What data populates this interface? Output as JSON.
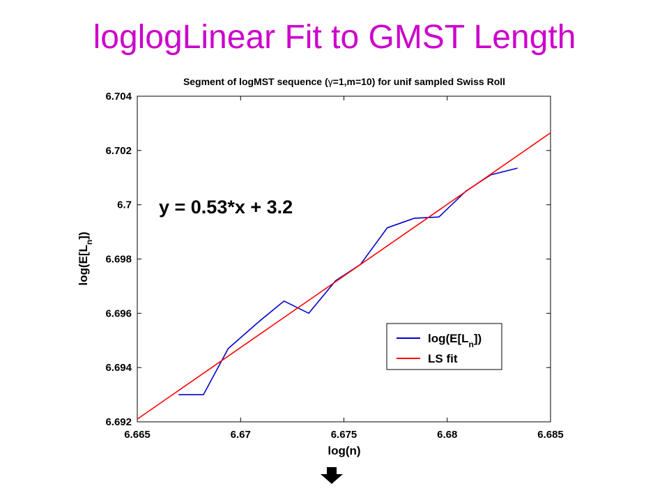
{
  "slide": {
    "title": "loglogLinear Fit to GMST Length"
  },
  "chart_data": {
    "type": "line",
    "title_parts": [
      "Segment of logMST sequence (",
      "γ",
      "=1,m=10) for unif sampled Swiss Roll"
    ],
    "xlabel": "log(n)",
    "ylabel_parts": [
      "log(E[L",
      "n",
      "])"
    ],
    "xlim": [
      6.665,
      6.685
    ],
    "ylim": [
      6.692,
      6.704
    ],
    "x_ticks": [
      6.665,
      6.67,
      6.675,
      6.68,
      6.685
    ],
    "x_tick_labels": [
      "6.665",
      "6.67",
      "6.675",
      "6.68",
      "6.685"
    ],
    "y_ticks": [
      6.692,
      6.694,
      6.696,
      6.698,
      6.7,
      6.702,
      6.704
    ],
    "y_tick_labels": [
      "6.692",
      "6.694",
      "6.696",
      "6.698",
      "6.7",
      "6.702",
      "6.704"
    ],
    "grid": false,
    "legend_position": "bottom-right",
    "annotation": "y = 0.53*x + 3.2",
    "series": [
      {
        "name_parts": [
          "log(E[L",
          "n",
          "])"
        ],
        "color": "#0000cc",
        "x": [
          6.667,
          6.6682,
          6.6694,
          6.6709,
          6.6721,
          6.6733,
          6.6746,
          6.6758,
          6.6771,
          6.6784,
          6.6796,
          6.6809,
          6.6821,
          6.6834
        ],
        "y": [
          6.693,
          6.693,
          6.6947,
          6.6957,
          6.69645,
          6.696,
          6.6972,
          6.6978,
          6.69915,
          6.6995,
          6.69955,
          6.7005,
          6.7011,
          6.70135
        ]
      },
      {
        "name": "LS fit",
        "color": "#ff0000",
        "x": [
          6.665,
          6.685
        ],
        "y": [
          6.6921,
          6.70265
        ]
      }
    ]
  },
  "nav": {
    "next_icon": "down-arrow-icon"
  }
}
